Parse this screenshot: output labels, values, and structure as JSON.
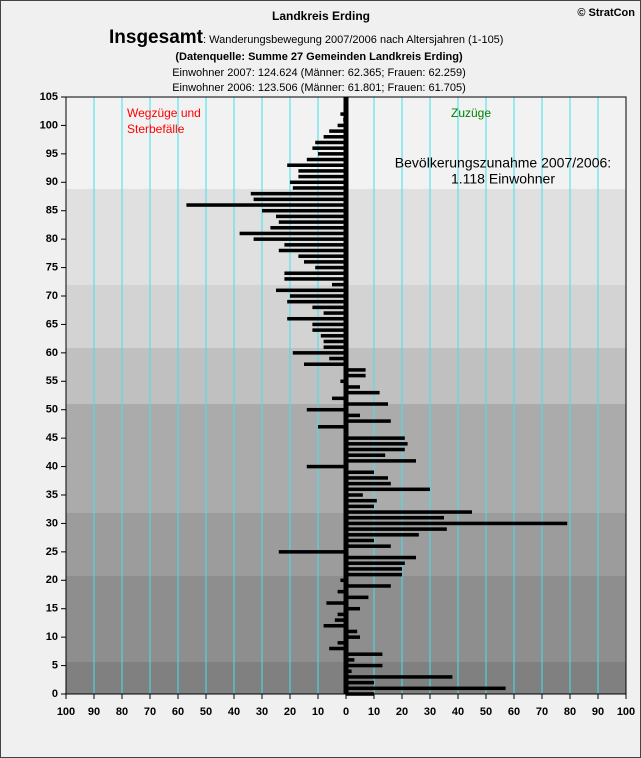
{
  "chart_data": {
    "type": "hbar",
    "title": "Landkreis Erding",
    "copyright": "© StratCon",
    "heading": "Insgesamt",
    "subtitle": ": Wanderungsbewegung 2007/2006 nach Altersjahren (1-105)",
    "source": "(Datenquelle: Summe 27 Gemeinden Landkreis Erding)",
    "info": [
      "Einwohner 2007: 124.624 (Männer: 62.365; Frauen: 62.259)",
      "Einwohner 2006: 123.506  (Männer: 61.801; Frauen: 61.705)"
    ],
    "annotations": [
      {
        "lines": [
          "Wegzüge und",
          "Sterbefälle"
        ],
        "color": "#ff0000"
      },
      {
        "lines": [
          "Zuzüge"
        ],
        "color": "#008000"
      },
      {
        "lines": [
          "Bevölkerungszunahme 2007/2006:",
          "1.118 Einwohner"
        ],
        "color": "#000000"
      }
    ],
    "color": "#000000",
    "gridcolor": "#40e0f0",
    "grid": true,
    "y": [
      0,
      1,
      2,
      3,
      4,
      5,
      6,
      7,
      8,
      9,
      10,
      11,
      12,
      13,
      14,
      15,
      16,
      17,
      18,
      19,
      20,
      21,
      22,
      23,
      24,
      25,
      26,
      27,
      28,
      29,
      30,
      31,
      32,
      33,
      34,
      35,
      36,
      37,
      38,
      39,
      40,
      41,
      42,
      43,
      44,
      45,
      46,
      47,
      48,
      49,
      50,
      51,
      52,
      53,
      54,
      55,
      56,
      57,
      58,
      59,
      60,
      61,
      62,
      63,
      64,
      65,
      66,
      67,
      68,
      69,
      70,
      71,
      72,
      73,
      74,
      75,
      76,
      77,
      78,
      79,
      80,
      81,
      82,
      83,
      84,
      85,
      86,
      87,
      88,
      89,
      90,
      91,
      92,
      93,
      94,
      95,
      96,
      97,
      98,
      99,
      100,
      101,
      102,
      103,
      104,
      105
    ],
    "values": [
      10,
      57,
      10,
      38,
      2,
      13,
      3,
      13,
      -6,
      -3,
      5,
      4,
      -8,
      -4,
      -3,
      5,
      -7,
      8,
      -3,
      16,
      -2,
      20,
      20,
      21,
      25,
      -24,
      16,
      10,
      26,
      36,
      79,
      35,
      45,
      10,
      11,
      6,
      30,
      16,
      15,
      10,
      -14,
      25,
      14,
      21,
      22,
      21,
      0,
      -10,
      16,
      5,
      -14,
      15,
      -5,
      12,
      5,
      -2,
      7,
      7,
      -15,
      -6,
      -19,
      -8,
      -8,
      -9,
      -12,
      -12,
      -21,
      -8,
      -12,
      -21,
      -20,
      -25,
      -5,
      -22,
      -22,
      -11,
      -15,
      -17,
      -24,
      -22,
      -33,
      -38,
      -27,
      -24,
      -25,
      -30,
      -57,
      -33,
      -34,
      -19,
      -20,
      -17,
      -17,
      -21,
      -14,
      -10,
      -12,
      -11,
      -8,
      -6,
      -3,
      -1,
      -2,
      0,
      0,
      0
    ],
    "xlim": [
      -100,
      100
    ],
    "xticks": [
      {
        "value": -100,
        "label": "100"
      },
      {
        "value": -90,
        "label": "90"
      },
      {
        "value": -80,
        "label": "80"
      },
      {
        "value": -70,
        "label": "70"
      },
      {
        "value": -60,
        "label": "60"
      },
      {
        "value": -50,
        "label": "50"
      },
      {
        "value": -40,
        "label": "40"
      },
      {
        "value": -30,
        "label": "30"
      },
      {
        "value": -20,
        "label": "20"
      },
      {
        "value": -10,
        "label": "10"
      },
      0,
      10,
      20,
      30,
      40,
      50,
      60,
      70,
      80,
      90,
      100
    ],
    "ylim": [
      0,
      105
    ],
    "yticks": [
      0,
      5,
      10,
      15,
      20,
      25,
      30,
      35,
      40,
      45,
      50,
      55,
      60,
      65,
      70,
      75,
      80,
      85,
      90,
      95,
      100,
      105
    ]
  }
}
